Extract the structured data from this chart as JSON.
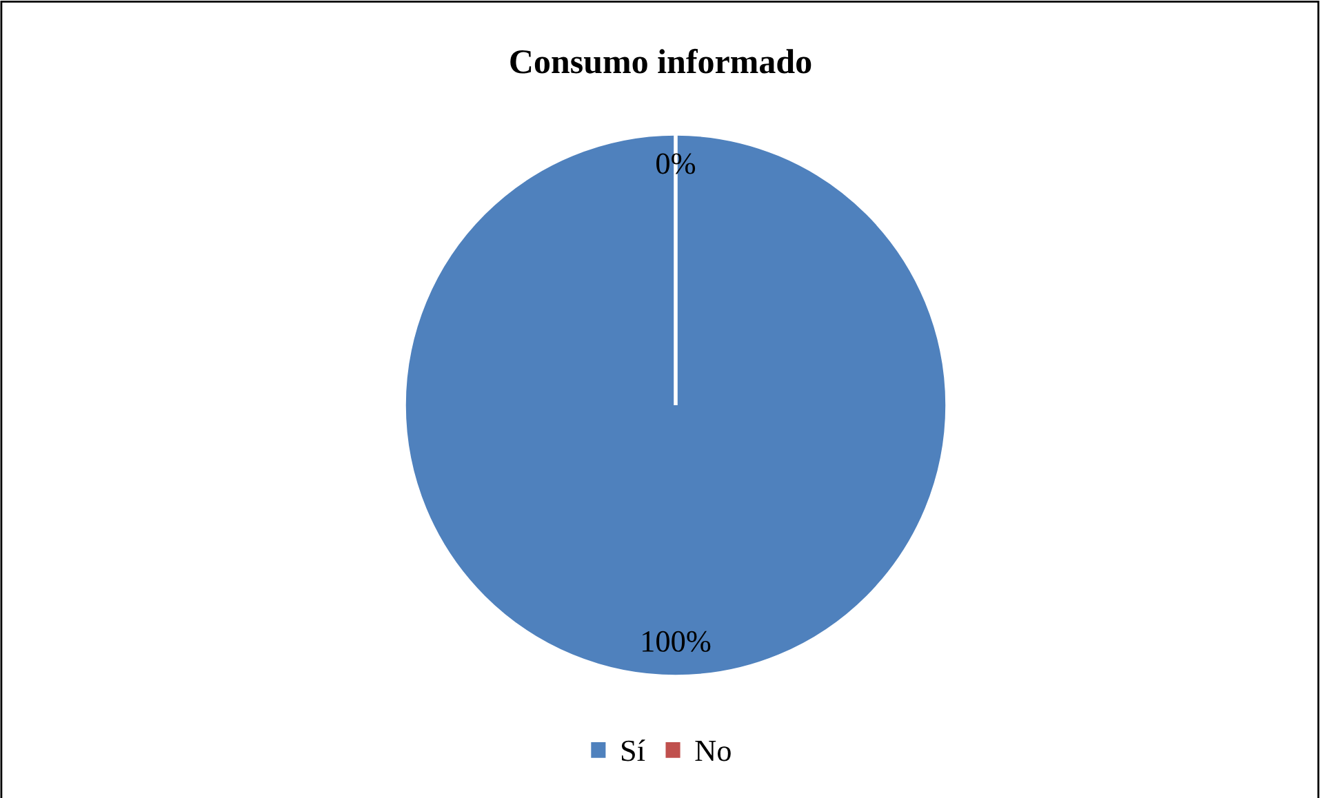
{
  "chart_data": {
    "type": "pie",
    "title": "Consumo informado",
    "categories": [
      "Sí",
      "No"
    ],
    "values": [
      100,
      0
    ],
    "colors": [
      "#4f81bd",
      "#c0504d"
    ],
    "value_labels": [
      "100%",
      "0%"
    ],
    "legend": "bottom"
  }
}
